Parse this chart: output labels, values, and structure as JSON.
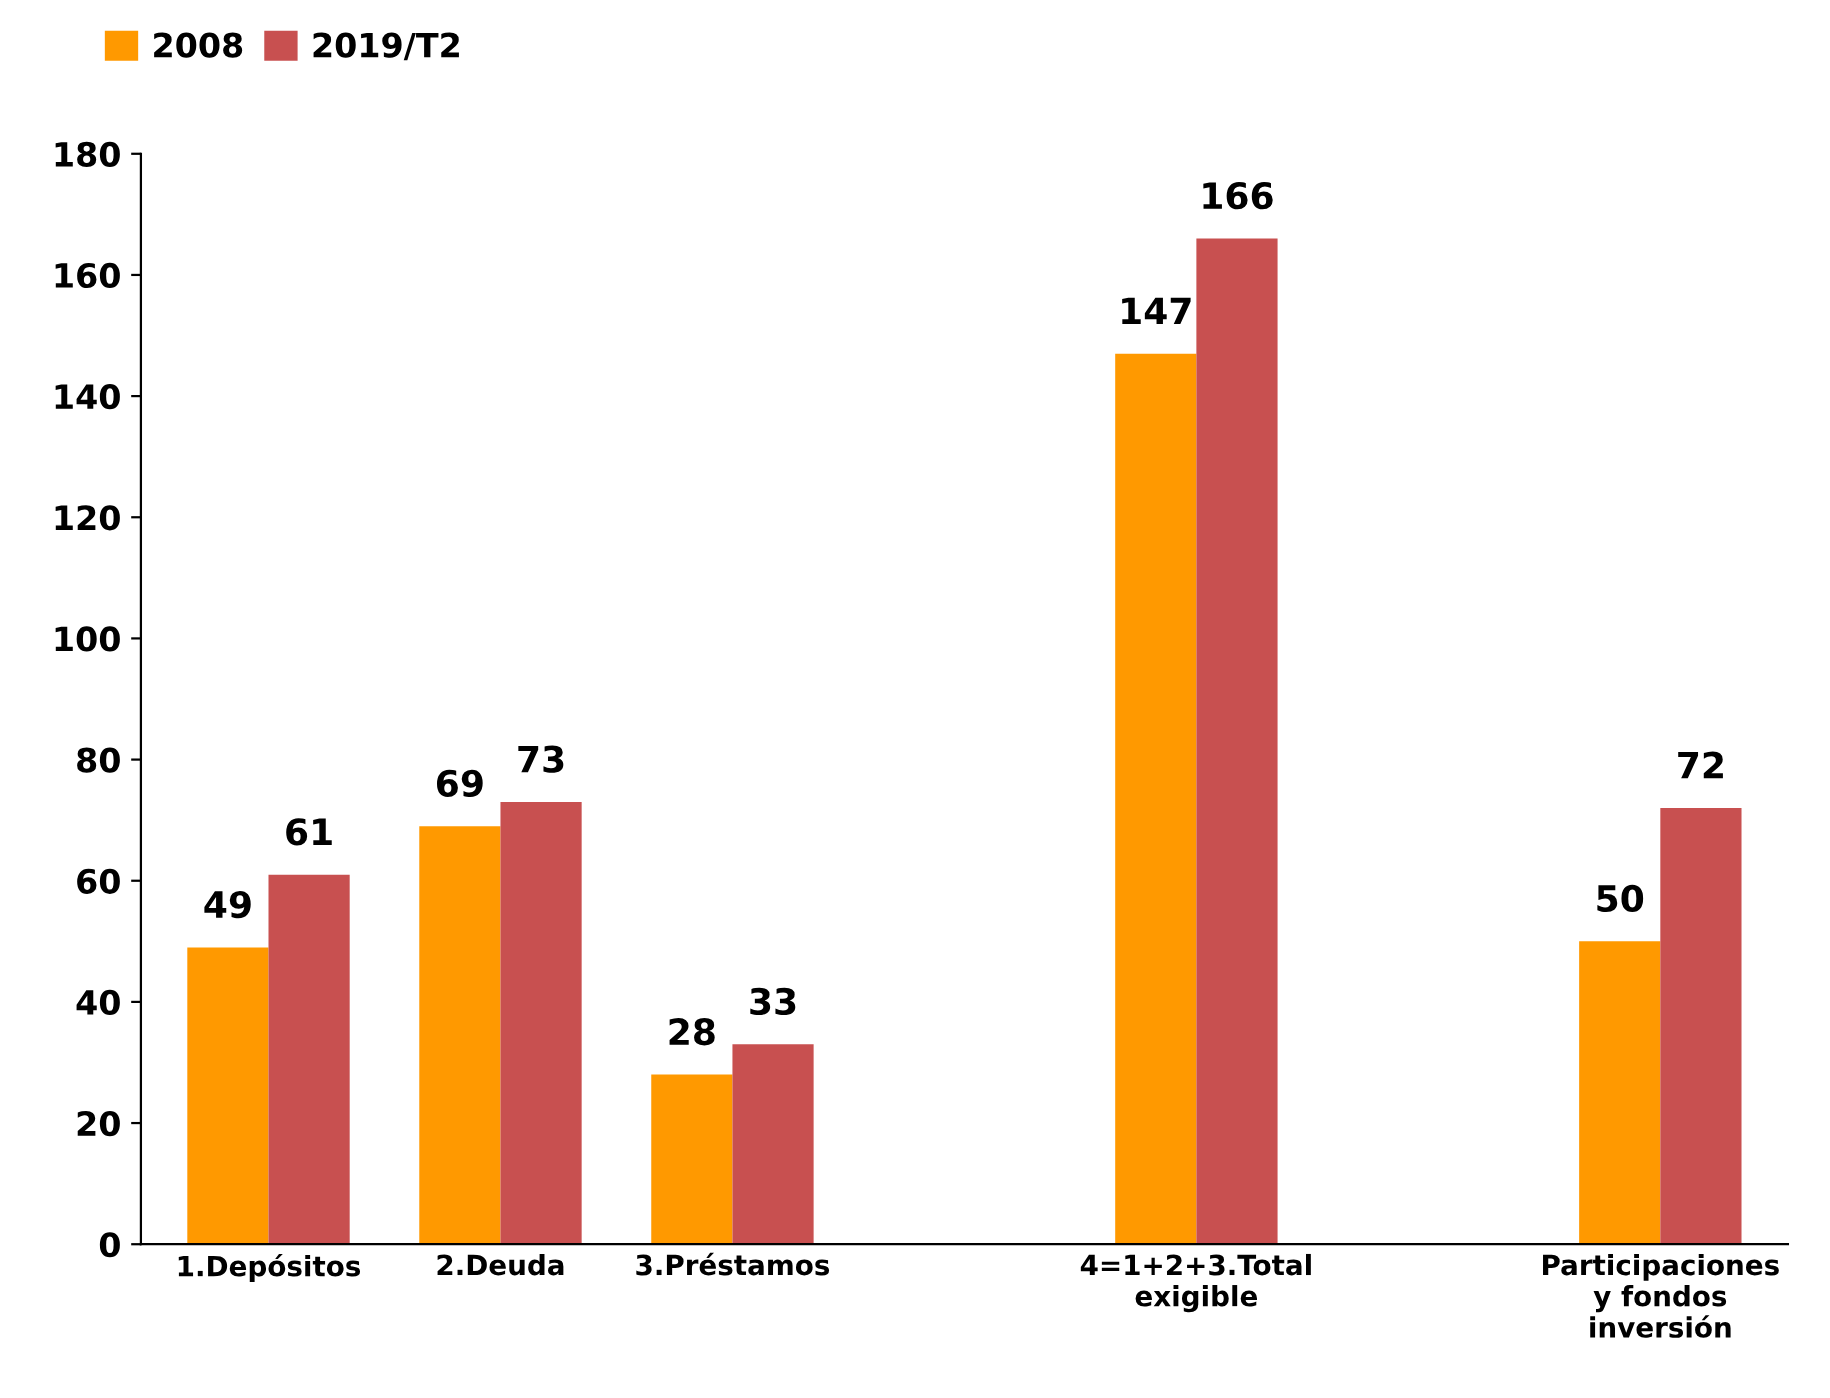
{
  "chart_data": {
    "type": "bar",
    "categories": [
      "1.Depósitos",
      "2.Deuda",
      "3.Préstamos",
      null,
      "4=1+2+3.Total\nexigible",
      null,
      "Participaciones\ny fondos\ninversión"
    ],
    "series": [
      {
        "name": "2008",
        "color": "#ff9900",
        "values": [
          49,
          69,
          28,
          null,
          147,
          null,
          50
        ]
      },
      {
        "name": "2019/T2",
        "color": "#c85050",
        "values": [
          61,
          73,
          33,
          null,
          166,
          null,
          72
        ]
      }
    ],
    "ylim": [
      0,
      180
    ],
    "yticks": [
      0,
      20,
      40,
      60,
      80,
      100,
      120,
      140,
      160,
      180
    ],
    "data_labels": true,
    "grid": false,
    "legend": "top left"
  }
}
